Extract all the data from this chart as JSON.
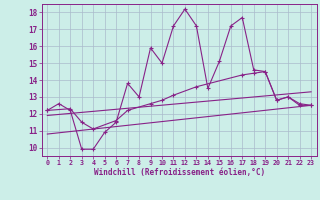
{
  "xlabel": "Windchill (Refroidissement éolien,°C)",
  "background_color": "#cceee8",
  "grid_color": "#aabbcc",
  "line_color": "#882288",
  "xlim": [
    -0.5,
    23.5
  ],
  "ylim": [
    9.5,
    18.5
  ],
  "yticks": [
    10,
    11,
    12,
    13,
    14,
    15,
    16,
    17,
    18
  ],
  "xticks": [
    0,
    1,
    2,
    3,
    4,
    5,
    6,
    7,
    8,
    9,
    10,
    11,
    12,
    13,
    14,
    15,
    16,
    17,
    18,
    19,
    20,
    21,
    22,
    23
  ],
  "line1_x": [
    0,
    1,
    2,
    3,
    4,
    5,
    6,
    7,
    8,
    9,
    10,
    11,
    12,
    13,
    14,
    15,
    16,
    17,
    18,
    19,
    20,
    21,
    22,
    23
  ],
  "line1_y": [
    12.2,
    12.6,
    12.2,
    9.9,
    9.9,
    10.9,
    11.5,
    13.8,
    13.0,
    15.9,
    15.0,
    17.2,
    18.2,
    17.2,
    13.5,
    15.1,
    17.2,
    17.7,
    14.6,
    14.5,
    12.8,
    13.0,
    12.5,
    12.5
  ],
  "line2_x": [
    0,
    2,
    3,
    4,
    6,
    7,
    9,
    10,
    11,
    13,
    17,
    18,
    19,
    20,
    21,
    22,
    23
  ],
  "line2_y": [
    12.2,
    12.3,
    11.5,
    11.1,
    11.6,
    12.2,
    12.6,
    12.8,
    13.1,
    13.6,
    14.3,
    14.4,
    14.5,
    12.8,
    13.0,
    12.6,
    12.5
  ],
  "line3_x": [
    0,
    23
  ],
  "line3_y": [
    11.9,
    13.3
  ],
  "line4_x": [
    0,
    23
  ],
  "line4_y": [
    10.8,
    12.5
  ]
}
